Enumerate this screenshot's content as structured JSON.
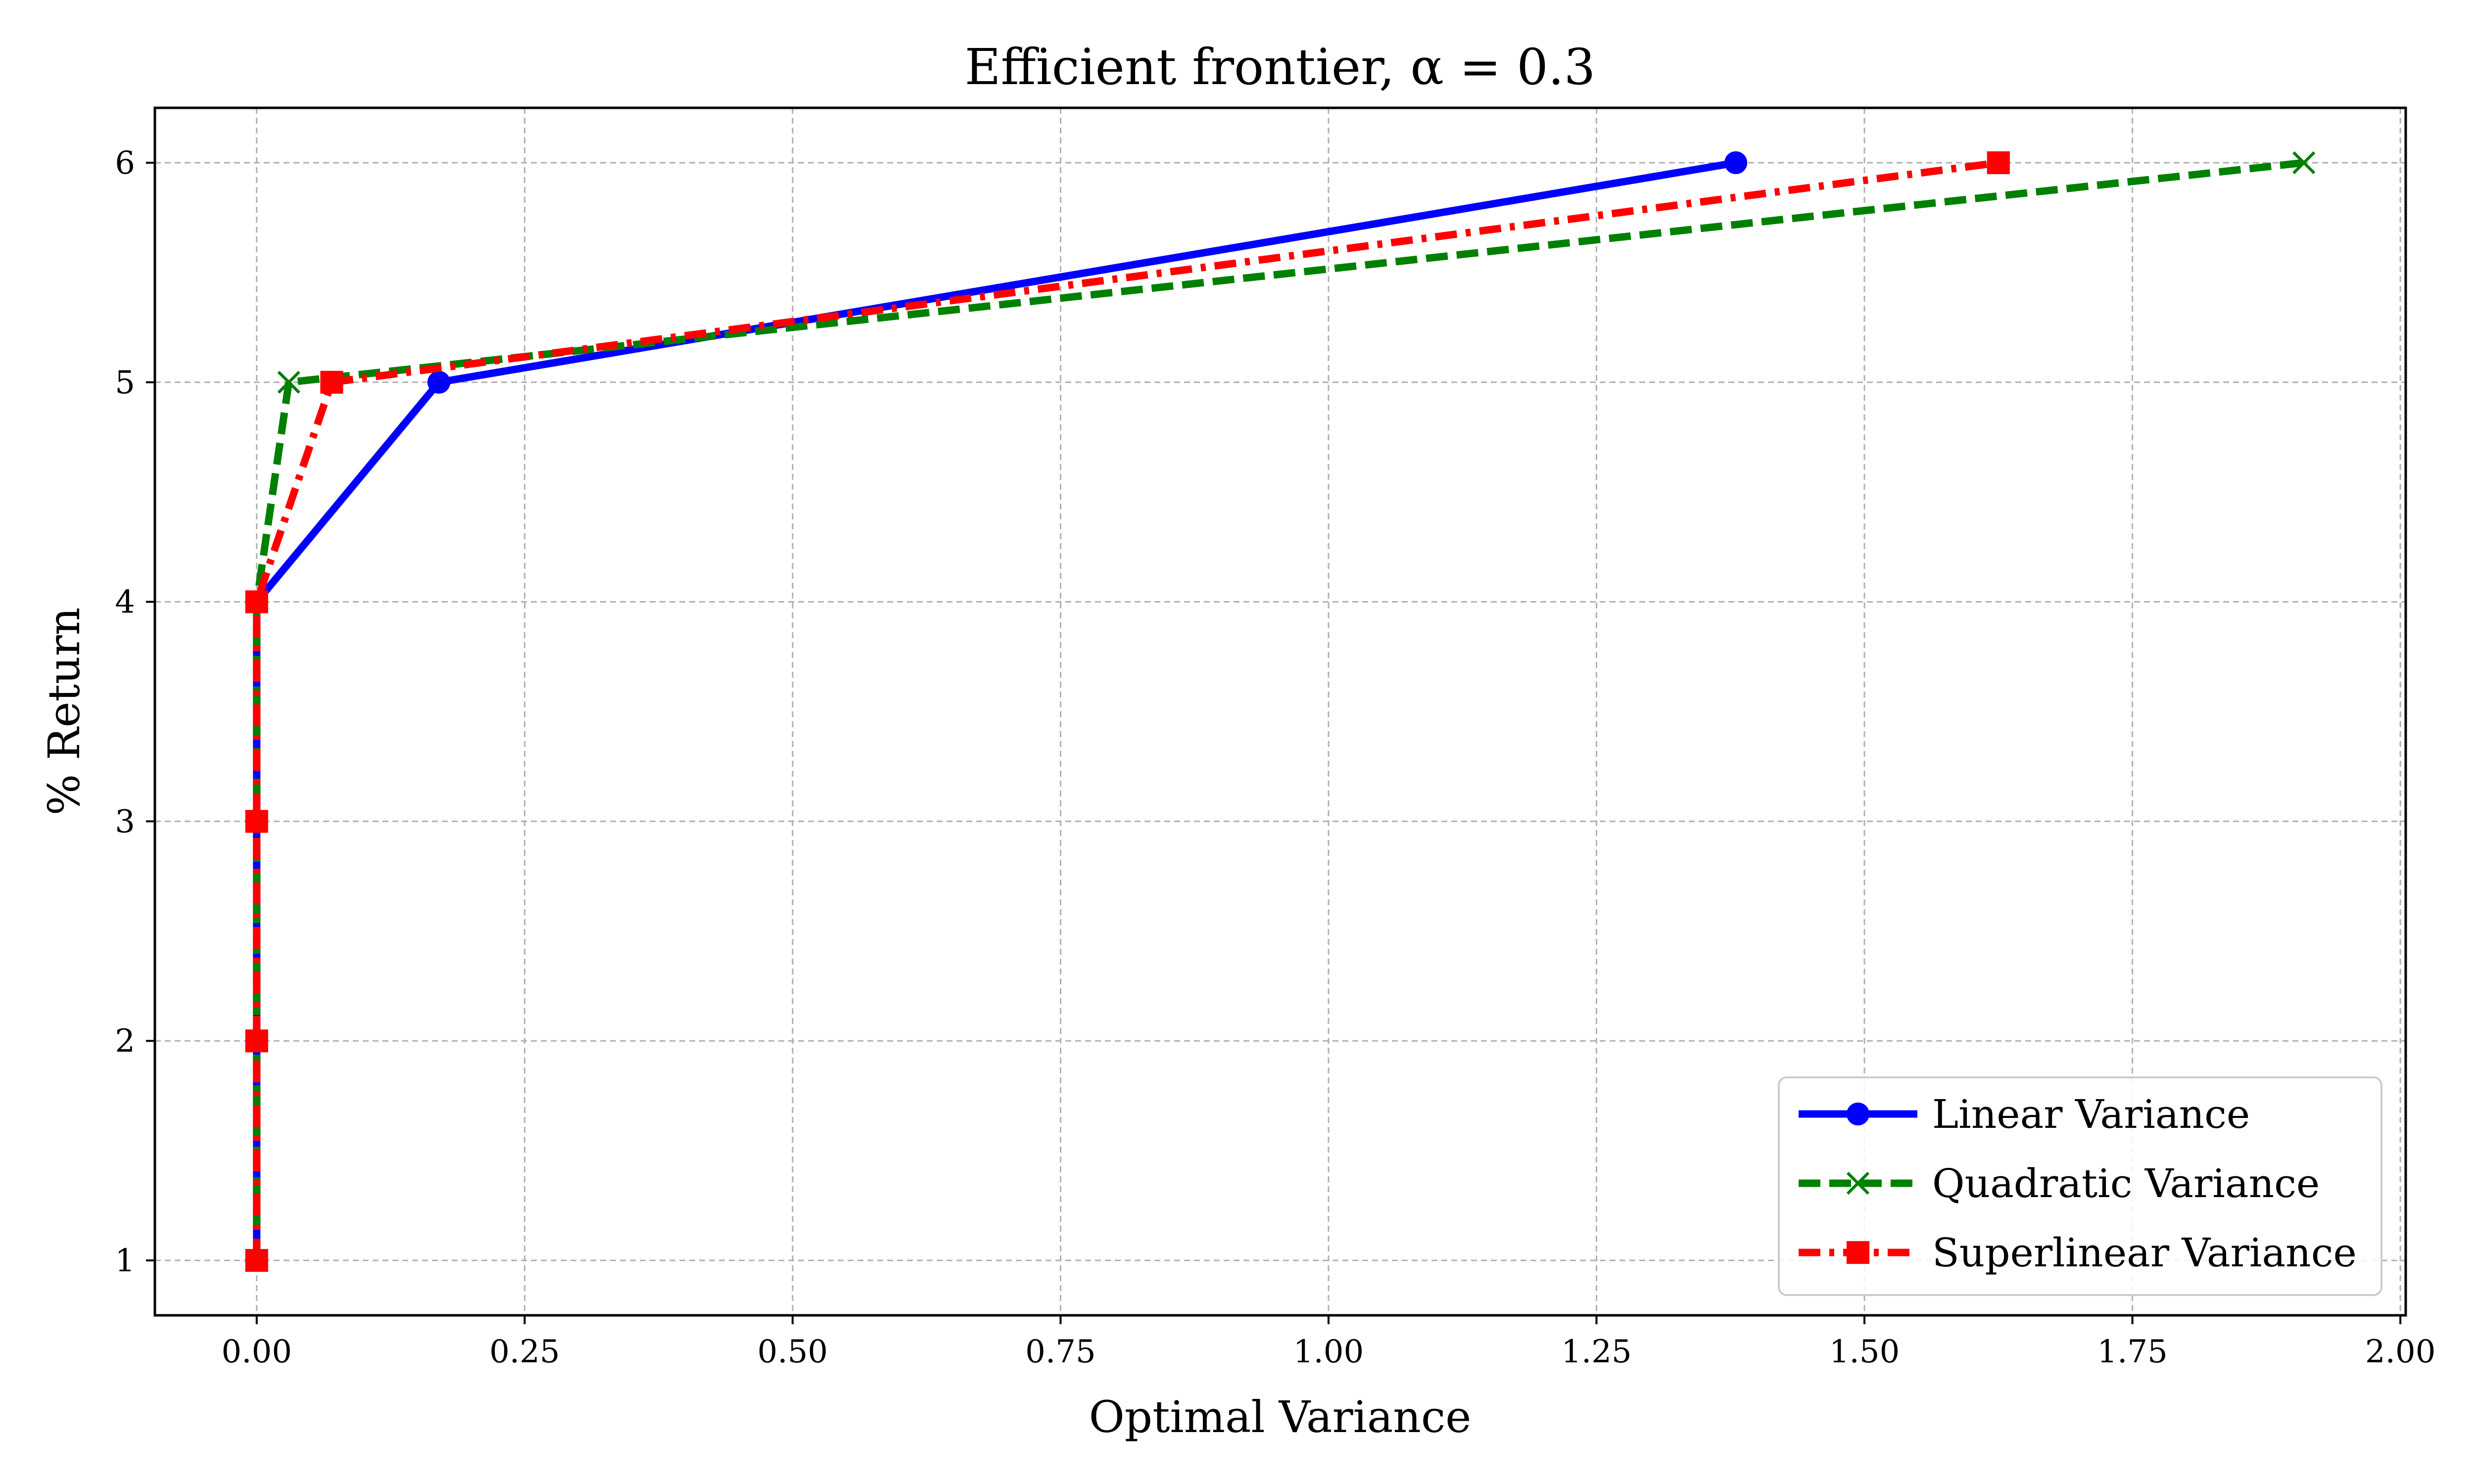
{
  "chart_data": {
    "type": "line",
    "title": "Efficient frontier, α = 0.3",
    "xlabel": "Optimal Variance",
    "ylabel": "% Return",
    "xlim": [
      -0.095,
      2.005
    ],
    "ylim": [
      0.75,
      6.25
    ],
    "xticks": [
      0.0,
      0.25,
      0.5,
      0.75,
      1.0,
      1.25,
      1.5,
      1.75,
      2.0
    ],
    "xtick_labels": [
      "0.00",
      "0.25",
      "0.50",
      "0.75",
      "1.00",
      "1.25",
      "1.50",
      "1.75",
      "2.00"
    ],
    "yticks": [
      1,
      2,
      3,
      4,
      5,
      6
    ],
    "ytick_labels": [
      "1",
      "2",
      "3",
      "4",
      "5",
      "6"
    ],
    "grid": true,
    "legend_position": "lower-right",
    "series": [
      {
        "name": "Linear Variance",
        "color": "#0000ff",
        "line_style": "solid",
        "marker": "circle",
        "x": [
          0.0,
          0.0,
          0.0,
          0.0,
          0.17,
          1.38
        ],
        "y": [
          1,
          2,
          3,
          4,
          5,
          6
        ]
      },
      {
        "name": "Quadratic Variance",
        "color": "#008000",
        "line_style": "dashed",
        "marker": "x",
        "x": [
          0.0,
          0.0,
          0.0,
          0.0,
          0.03,
          1.91
        ],
        "y": [
          1,
          2,
          3,
          4,
          5,
          6
        ]
      },
      {
        "name": "Superlinear Variance",
        "color": "#ff0000",
        "line_style": "dashdot",
        "marker": "square",
        "x": [
          0.0,
          0.0,
          0.0,
          0.0,
          0.07,
          1.625
        ],
        "y": [
          1,
          2,
          3,
          4,
          5,
          6
        ]
      }
    ]
  }
}
